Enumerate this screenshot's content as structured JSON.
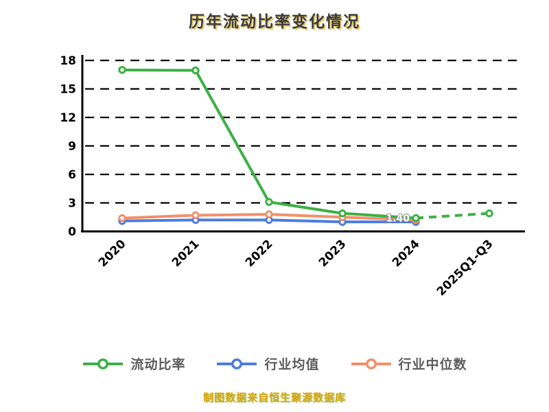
{
  "chart_data": {
    "type": "line",
    "title": "历年流动比率变化情况",
    "categories": [
      "2020",
      "2021",
      "2022",
      "2023",
      "2024",
      "2025Q1-Q3"
    ],
    "yticks": [
      0,
      3,
      6,
      9,
      12,
      15,
      18
    ],
    "ylim": [
      0,
      18
    ],
    "grid": "dashed-horizontal",
    "legend_position": "bottom",
    "axis_color": "#000000",
    "series": [
      {
        "name": "流动比率",
        "color": "#3cb043",
        "values": [
          17.0,
          16.95,
          3.1,
          1.9,
          1.4,
          1.9
        ],
        "dash_from_index": 4
      },
      {
        "name": "行业均值",
        "color": "#4d7cdc",
        "values": [
          1.1,
          1.2,
          1.2,
          1.0,
          1.0,
          null
        ],
        "dash_from_index": null
      },
      {
        "name": "行业中位数",
        "color": "#f2906b",
        "values": [
          1.4,
          1.7,
          1.8,
          1.5,
          1.2,
          null
        ],
        "dash_from_index": null
      }
    ],
    "annotations": [
      {
        "text": "1.40",
        "series": "流动比率",
        "index": 4
      }
    ]
  },
  "footer": {
    "note": "制图数据来自恒生聚源数据库"
  },
  "colors": {
    "title": "#3b3b3b",
    "title_glow": "#e0b83c",
    "footer": "#d9a40b",
    "legend_label": "#5c5c5c"
  }
}
